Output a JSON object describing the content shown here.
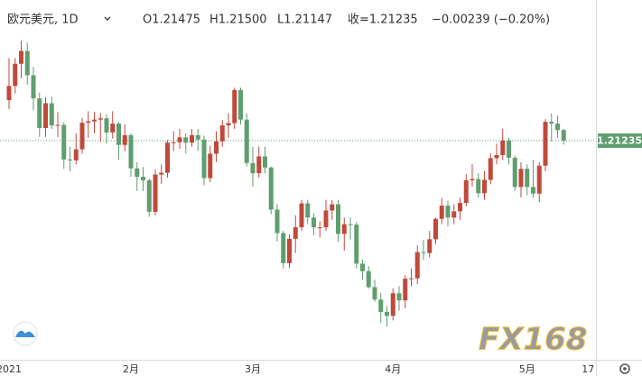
{
  "chart_data": {
    "type": "candlestick",
    "title": "欧元美元, 1D",
    "header_values": [
      "O1.21475",
      "H1.21500",
      "L1.21147",
      "收=1.21235",
      "−0.00239 (−0.20%)"
    ],
    "watermark": "FX168",
    "categories": [
      "2021",
      null,
      null,
      null,
      null,
      null,
      null,
      null,
      null,
      null,
      null,
      null,
      null,
      null,
      null,
      null,
      null,
      null,
      null,
      null,
      "2月",
      null,
      null,
      null,
      null,
      null,
      null,
      null,
      null,
      null,
      null,
      null,
      null,
      null,
      null,
      null,
      null,
      null,
      null,
      null,
      "3月",
      null,
      null,
      null,
      null,
      null,
      null,
      null,
      null,
      null,
      null,
      null,
      null,
      null,
      null,
      null,
      null,
      null,
      null,
      null,
      null,
      null,
      null,
      "4月",
      null,
      null,
      null,
      null,
      null,
      null,
      null,
      null,
      null,
      null,
      null,
      null,
      null,
      null,
      null,
      null,
      null,
      null,
      null,
      null,
      null,
      "5月",
      null,
      null,
      null,
      null,
      null,
      null,
      null,
      null,
      null,
      "17"
    ],
    "open": [
      1.2215,
      1.2247,
      1.2297,
      1.2326,
      1.2271,
      1.2219,
      1.2152,
      1.2208,
      1.2158,
      1.2159,
      1.2081,
      1.2079,
      1.2104,
      1.2164,
      1.2167,
      1.2171,
      1.2174,
      1.2142,
      1.2162,
      1.2114,
      1.2136,
      1.2061,
      1.2042,
      1.2034,
      1.1963,
      1.2047,
      1.2051,
      1.2119,
      1.212,
      1.2131,
      1.2119,
      1.2136,
      1.2126,
      1.2039,
      1.2094,
      1.2122,
      1.2158,
      1.2163,
      1.2238,
      1.2171,
      1.2073,
      1.205,
      1.2088,
      1.2063,
      1.1968,
      1.1915,
      1.1847,
      1.1902,
      1.1928,
      1.1982,
      1.195,
      1.1928,
      1.1928,
      1.1966,
      1.198,
      1.1913,
      1.1935,
      1.1934,
      1.1846,
      1.1829,
      1.1793,
      1.1765,
      1.1737,
      1.1728,
      1.1779,
      1.1763,
      1.1812,
      1.1813,
      1.1872,
      1.187,
      1.1901,
      1.1947,
      1.1977,
      1.195,
      1.1964,
      1.1983,
      1.2034,
      1.2037,
      1.2005,
      1.2035,
      1.2084,
      1.2091,
      1.2124,
      1.2085,
      1.2019,
      1.206,
      1.2019,
      1.2004,
      1.2067,
      1.2166,
      1.2162,
      1.21475,
      null,
      null,
      null,
      null
    ],
    "high": [
      1.231,
      1.231,
      1.2349,
      1.2345,
      1.229,
      1.2232,
      1.2222,
      1.2223,
      1.2188,
      1.2165,
      1.211,
      1.214,
      1.2175,
      1.219,
      1.2188,
      1.2186,
      1.2183,
      1.219,
      1.2166,
      1.216,
      1.214,
      1.2075,
      1.2064,
      1.2038,
      1.2058,
      1.207,
      1.2125,
      1.2145,
      1.215,
      1.214,
      1.215,
      1.215,
      1.2135,
      1.2112,
      1.2145,
      1.217,
      1.2185,
      1.2243,
      1.2243,
      1.2185,
      1.211,
      1.211,
      1.211,
      1.2065,
      1.198,
      1.192,
      1.1912,
      1.1955,
      1.199,
      1.199,
      1.196,
      1.1942,
      1.199,
      1.1989,
      1.199,
      1.195,
      1.195,
      1.194,
      1.1855,
      1.184,
      1.181,
      1.178,
      1.175,
      1.179,
      1.1795,
      1.182,
      1.1835,
      1.1887,
      1.19,
      1.192,
      1.195,
      1.1994,
      1.1988,
      1.198,
      1.1995,
      1.2048,
      1.207,
      1.205,
      1.2055,
      1.2095,
      1.2117,
      1.215,
      1.213,
      1.209,
      1.2075,
      1.207,
      1.208,
      1.2075,
      1.2172,
      1.2185,
      1.218,
      1.215,
      null,
      null,
      null,
      null
    ],
    "low": [
      1.2195,
      1.223,
      1.2265,
      1.225,
      1.2192,
      1.2132,
      1.2132,
      1.215,
      1.2132,
      1.206,
      1.2054,
      1.207,
      1.2094,
      1.213,
      1.214,
      1.212,
      1.2117,
      1.2128,
      1.208,
      1.21,
      1.2042,
      1.201,
      1.201,
      1.1952,
      1.1955,
      1.2026,
      1.204,
      1.21,
      1.2105,
      1.2095,
      1.211,
      1.21,
      1.2023,
      1.203,
      1.2075,
      1.211,
      1.213,
      1.215,
      1.216,
      1.2065,
      1.202,
      1.204,
      1.205,
      1.1958,
      1.1895,
      1.1835,
      1.1836,
      1.187,
      1.192,
      1.1935,
      1.191,
      1.1905,
      1.192,
      1.1945,
      1.1895,
      1.1875,
      1.19,
      1.1835,
      1.181,
      1.179,
      1.176,
      1.1712,
      1.1704,
      1.1718,
      1.174,
      1.1745,
      1.1795,
      1.18,
      1.1855,
      1.186,
      1.189,
      1.1935,
      1.193,
      1.1935,
      1.1945,
      1.1975,
      1.202,
      1.1995,
      1.199,
      1.2025,
      1.207,
      1.208,
      1.207,
      1.201,
      1.1995,
      1.2,
      1.1995,
      1.1985,
      1.2055,
      1.2122,
      1.213,
      1.21147,
      null,
      null,
      null,
      null
    ],
    "close": [
      1.2247,
      1.2297,
      1.2326,
      1.2271,
      1.2219,
      1.2152,
      1.2208,
      1.2158,
      1.2159,
      1.2081,
      1.2079,
      1.2104,
      1.2164,
      1.2167,
      1.2171,
      1.2174,
      1.2142,
      1.2162,
      1.2114,
      1.2136,
      1.2061,
      1.2042,
      1.2034,
      1.1963,
      1.2047,
      1.2051,
      1.2119,
      1.212,
      1.2131,
      1.2119,
      1.2136,
      1.2126,
      1.2039,
      1.2094,
      1.2122,
      1.2158,
      1.2163,
      1.2238,
      1.2171,
      1.2073,
      1.205,
      1.2088,
      1.2063,
      1.1968,
      1.1915,
      1.1847,
      1.1902,
      1.1928,
      1.1982,
      1.195,
      1.1928,
      1.1928,
      1.1966,
      1.198,
      1.1913,
      1.1935,
      1.1934,
      1.1846,
      1.1829,
      1.1793,
      1.1765,
      1.1737,
      1.1728,
      1.1779,
      1.1763,
      1.1812,
      1.1813,
      1.1872,
      1.187,
      1.1901,
      1.1947,
      1.1977,
      1.195,
      1.1964,
      1.1983,
      1.2034,
      1.2037,
      1.2005,
      1.2035,
      1.2084,
      1.2091,
      1.2124,
      1.2085,
      1.2019,
      1.206,
      1.2019,
      1.2004,
      1.2067,
      1.2166,
      1.2162,
      1.21474,
      1.21235,
      null,
      null,
      null,
      null
    ],
    "last_price": 1.21235,
    "up_color": "#c0493c",
    "down_color": "#5f9e6e",
    "ylim": [
      1.1627,
      1.2441
    ]
  }
}
